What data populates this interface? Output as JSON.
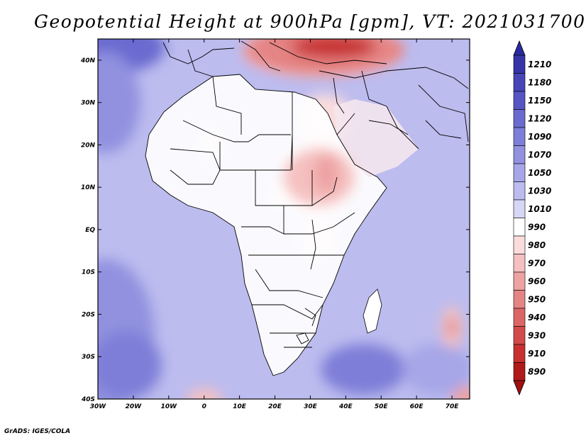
{
  "title": "Geopotential Height at 900hPa [gpm], VT: 2021031700",
  "credit": "GrADS: IGES/COLA",
  "map": {
    "lon_range": [
      -30,
      75
    ],
    "lat_range": [
      -40,
      45
    ],
    "lon_ticks": [
      {
        "value": -30,
        "label": "30W"
      },
      {
        "value": -20,
        "label": "20W"
      },
      {
        "value": -10,
        "label": "10W"
      },
      {
        "value": 0,
        "label": "0"
      },
      {
        "value": 10,
        "label": "10E"
      },
      {
        "value": 20,
        "label": "20E"
      },
      {
        "value": 30,
        "label": "30E"
      },
      {
        "value": 40,
        "label": "40E"
      },
      {
        "value": 50,
        "label": "50E"
      },
      {
        "value": 60,
        "label": "60E"
      },
      {
        "value": 70,
        "label": "70E"
      }
    ],
    "lat_ticks": [
      {
        "value": 40,
        "label": "40N"
      },
      {
        "value": 30,
        "label": "30N"
      },
      {
        "value": 20,
        "label": "20N"
      },
      {
        "value": 10,
        "label": "10N"
      },
      {
        "value": 0,
        "label": "EQ"
      },
      {
        "value": -10,
        "label": "10S"
      },
      {
        "value": -20,
        "label": "20S"
      },
      {
        "value": -30,
        "label": "30S"
      },
      {
        "value": -40,
        "label": "40S"
      }
    ]
  },
  "colorbar": {
    "levels": [
      {
        "label": "1210",
        "color": "#3535a8"
      },
      {
        "label": "1180",
        "color": "#4646b8"
      },
      {
        "label": "1150",
        "color": "#5555c4"
      },
      {
        "label": "1120",
        "color": "#6a6ad0"
      },
      {
        "label": "1090",
        "color": "#7e7ed8"
      },
      {
        "label": "1070",
        "color": "#9191e0"
      },
      {
        "label": "1050",
        "color": "#a6a6e8"
      },
      {
        "label": "1030",
        "color": "#bcbcef"
      },
      {
        "label": "1010",
        "color": "#d6d6f7"
      },
      {
        "label": "990",
        "color": "#ffffff"
      },
      {
        "label": "980",
        "color": "#fbdcdc"
      },
      {
        "label": "970",
        "color": "#f5c0c0"
      },
      {
        "label": "960",
        "color": "#eea2a2"
      },
      {
        "label": "950",
        "color": "#e58484"
      },
      {
        "label": "940",
        "color": "#dc6666"
      },
      {
        "label": "930",
        "color": "#d34a4a"
      },
      {
        "label": "910",
        "color": "#c83030"
      },
      {
        "label": "890",
        "color": "#b01a1a"
      }
    ],
    "top_extend_color": "#2a2aa0",
    "bottom_extend_color": "#a01010"
  },
  "field_blobs": [
    {
      "lon": -25,
      "lat": 43,
      "rlon": 14,
      "rlat": 6,
      "color": "#6a6ad0"
    },
    {
      "lon": -28,
      "lat": 30,
      "rlon": 10,
      "rlat": 12,
      "color": "#9191e0"
    },
    {
      "lon": -28,
      "lat": -25,
      "rlon": 14,
      "rlat": 18,
      "color": "#9191e0"
    },
    {
      "lon": -22,
      "lat": -32,
      "rlon": 10,
      "rlat": 8,
      "color": "#7e7ed8"
    },
    {
      "lon": 45,
      "lat": -33,
      "rlon": 12,
      "rlat": 6,
      "color": "#7e7ed8"
    },
    {
      "lon": 66,
      "lat": -33,
      "rlon": 10,
      "rlat": 6,
      "color": "#a6a6e8"
    },
    {
      "lon": 52,
      "lat": 32,
      "rlon": 14,
      "rlat": 7,
      "color": "#bcbcef"
    },
    {
      "lon": 8,
      "lat": 33,
      "rlon": 12,
      "rlat": 6,
      "color": "#bcbcef"
    },
    {
      "lon": 32,
      "lat": 12,
      "rlon": 10,
      "rlat": 9,
      "color": "#fbdcdc"
    },
    {
      "lon": 35,
      "lat": 13,
      "rlon": 5,
      "rlat": 5,
      "color": "#f5c0c0"
    },
    {
      "lon": 2,
      "lat": 20,
      "rlon": 3,
      "rlat": 3,
      "color": "#fbdcdc"
    },
    {
      "lon": 23,
      "lat": 8,
      "rlon": 4,
      "rlat": 3,
      "color": "#fbdcdc"
    },
    {
      "lon": 32,
      "lat": -2,
      "rlon": 5,
      "rlat": 5,
      "color": "#fbdcdc"
    },
    {
      "lon": 34,
      "lat": 26,
      "rlon": 8,
      "rlat": 6,
      "color": "#fbdcdc"
    },
    {
      "lon": 33,
      "lat": 42,
      "rlon": 22,
      "rlat": 6,
      "color": "#eea2a2"
    },
    {
      "lon": 33,
      "lat": 43,
      "rlon": 16,
      "rlat": 4,
      "color": "#dc6666"
    },
    {
      "lon": 33,
      "lat": 44,
      "rlon": 10,
      "rlat": 3,
      "color": "#c83030"
    },
    {
      "lon": 70,
      "lat": -23,
      "rlon": 3,
      "rlat": 5,
      "color": "#f5c0c0"
    },
    {
      "lon": 70,
      "lat": -23,
      "rlon": 1.5,
      "rlat": 2,
      "color": "#e58484"
    },
    {
      "lon": 0,
      "lat": -40,
      "rlon": 5,
      "rlat": 2.5,
      "color": "#f5c0c0"
    },
    {
      "lon": 74,
      "lat": -40,
      "rlon": 4,
      "rlat": 3,
      "color": "#eea2a2"
    }
  ]
}
